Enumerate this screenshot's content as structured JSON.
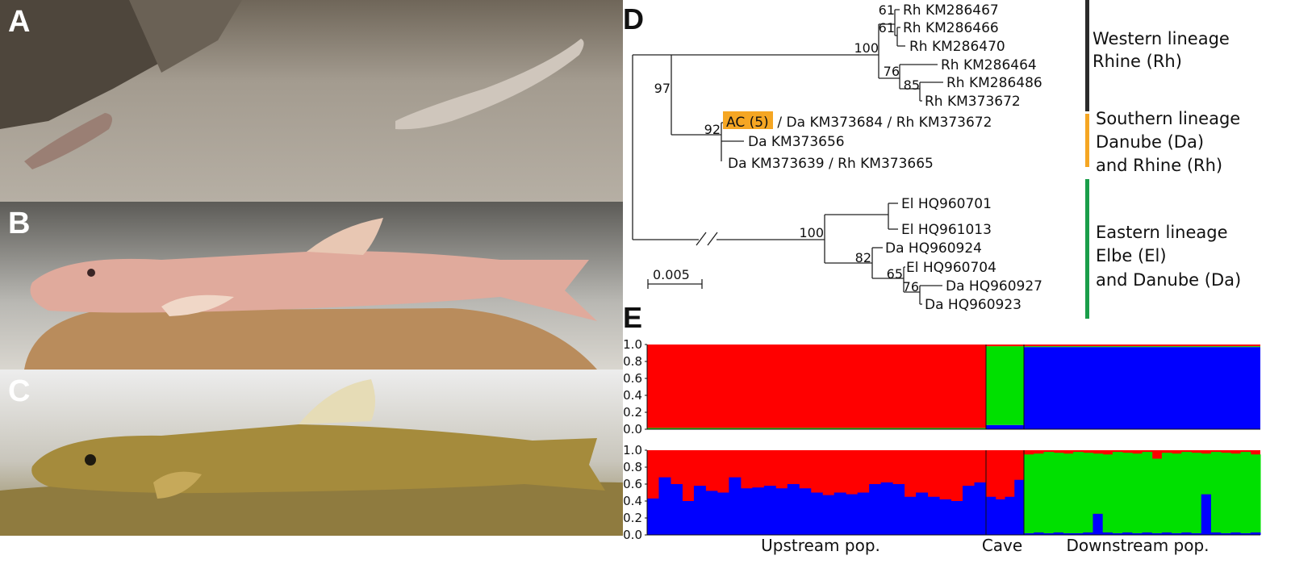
{
  "panels": {
    "a": "A",
    "b": "B",
    "c": "C",
    "d": "D",
    "e": "E"
  },
  "tree": {
    "scale_label": "0.005",
    "tips": {
      "rh1": "Rh KM286467",
      "rh2": "Rh KM286466",
      "rh3": "Rh KM286470",
      "rh4": "Rh KM286464",
      "rh5": "Rh KM286486",
      "rh6": "Rh KM373672",
      "ac_box": "AC (5)",
      "ac_rest": " / Da KM373684 / Rh KM373672",
      "da1": "Da KM373656",
      "da2": "Da KM373639 / Rh KM373665",
      "el1": "El HQ960701",
      "el2": "El HQ961013",
      "da3": "Da HQ960924",
      "el3": "El HQ960704",
      "da4": "Da HQ960927",
      "da5": "Da HQ960923"
    },
    "support": {
      "s61a": "61",
      "s61b": "61",
      "s100a": "100",
      "s76a": "76",
      "s85": "85",
      "s97": "97",
      "s92": "92",
      "s100b": "100",
      "s82": "82",
      "s65": "65",
      "s76b": "76"
    },
    "lineages": {
      "western_1": "Western lineage",
      "western_2": "Rhine (Rh)",
      "southern_1": "Southern lineage",
      "southern_2": "Danube (Da)",
      "southern_3": "and Rhine (Rh)",
      "eastern_1": "Eastern lineage",
      "eastern_2": "Elbe (El)",
      "eastern_3": "and Danube (Da)"
    },
    "colors": {
      "western": "#2b2b2b",
      "southern": "#f5a623",
      "eastern": "#1a9e4a",
      "ac_highlight": "#f5a623"
    }
  },
  "chart_data": [
    {
      "type": "bar",
      "stacked": true,
      "ylim": [
        0,
        1
      ],
      "yticks": [
        "0.0",
        "0.2",
        "0.4",
        "0.6",
        "0.8",
        "1.0"
      ],
      "groups": {
        "upstream": "Upstream pop.",
        "cave": "Cave",
        "downstream": "Downstream pop."
      },
      "group_counts": {
        "upstream": 74,
        "cave": 8,
        "downstream": 50
      },
      "colors": {
        "red": "#ff0000",
        "green": "#00e000",
        "blue": "#0000ff"
      },
      "series": [
        {
          "key": "red",
          "by_group": {
            "upstream": 0.985,
            "cave": 0.02,
            "downstream": 0.02
          }
        },
        {
          "key": "green",
          "by_group": {
            "upstream": 0.01,
            "cave": 0.93,
            "downstream": 0.01
          }
        },
        {
          "key": "blue",
          "by_group": {
            "upstream": 0.005,
            "cave": 0.05,
            "downstream": 0.97
          }
        }
      ]
    },
    {
      "type": "bar",
      "stacked": true,
      "ylim": [
        0,
        1
      ],
      "yticks": [
        "0.0",
        "0.2",
        "0.4",
        "0.6",
        "0.8",
        "1.0"
      ],
      "group_counts": {
        "upstream": 74,
        "cave": 8,
        "downstream": 50
      },
      "blue_upstream": [
        0.43,
        0.68,
        0.6,
        0.4,
        0.58,
        0.52,
        0.5,
        0.68,
        0.55,
        0.56,
        0.58,
        0.55,
        0.6,
        0.55,
        0.5,
        0.47,
        0.5,
        0.48,
        0.5,
        0.6,
        0.62,
        0.6,
        0.45,
        0.5,
        0.45,
        0.42,
        0.4,
        0.58,
        0.62
      ],
      "blue_cave": [
        0.45,
        0.42,
        0.45,
        0.65
      ],
      "green_downstream": [
        0.95,
        0.96,
        0.98,
        0.97,
        0.96,
        0.98,
        0.97,
        0.96,
        0.95,
        0.98,
        0.97,
        0.96,
        0.98,
        0.9,
        0.97,
        0.96,
        0.98,
        0.97,
        0.96,
        0.98,
        0.97,
        0.96,
        0.98,
        0.95
      ],
      "blue_downstream": [
        0.02,
        0.03,
        0.02,
        0.03,
        0.02,
        0.02,
        0.03,
        0.25,
        0.03,
        0.02,
        0.03,
        0.02,
        0.03,
        0.02,
        0.03,
        0.02,
        0.03,
        0.02,
        0.48,
        0.03,
        0.02,
        0.03,
        0.02,
        0.03
      ]
    }
  ]
}
